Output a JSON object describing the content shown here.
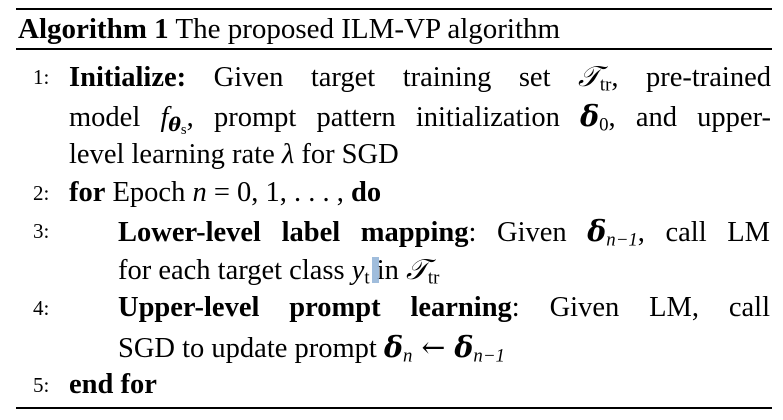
{
  "algorithm": {
    "label": "Algorithm 1",
    "title": "The proposed ILM-VP algorithm",
    "steps": [
      {
        "number": "1:",
        "keyword": "Initialize:",
        "line1": " Given target training set ",
        "target_set": "𝒯",
        "target_set_sub": "tr",
        "line1_end": ", pre-trained",
        "line2_a": "model ",
        "model_symbol": "f",
        "model_sub": "θ",
        "model_subsub": "s",
        "line2_b": ", prompt pattern initialization ",
        "delta0": "δ",
        "delta0_sub": "0",
        "line2_c": ", and upper-",
        "line3_a": "level learning rate ",
        "lambda": "λ",
        "line3_b": " for SGD"
      },
      {
        "number": "2:",
        "keyword_for": "for",
        "text_a": " Epoch ",
        "var_n": "n",
        "text_eq": " = 0, 1, . . . , ",
        "keyword_do": "do"
      },
      {
        "number": "3:",
        "keyword": "Lower-level label mapping",
        "text_a": ": Given ",
        "delta": "δ",
        "delta_sub": "n−1",
        "text_b": ", call LM",
        "line2_a": "for each target class ",
        "class_var": "y",
        "class_sub": "t",
        "line2_b": " in ",
        "target_set": "𝒯",
        "target_set_sub": "tr"
      },
      {
        "number": "4:",
        "keyword": "Upper-level prompt learning",
        "text_a": ":  Given LM, call",
        "line2_a": "SGD to update prompt ",
        "delta_n": "δ",
        "delta_n_sub": "n",
        "arrow": " ← ",
        "delta_prev": "δ",
        "delta_prev_sub": "n−1"
      },
      {
        "number": "5:",
        "keyword": "end for"
      }
    ]
  }
}
